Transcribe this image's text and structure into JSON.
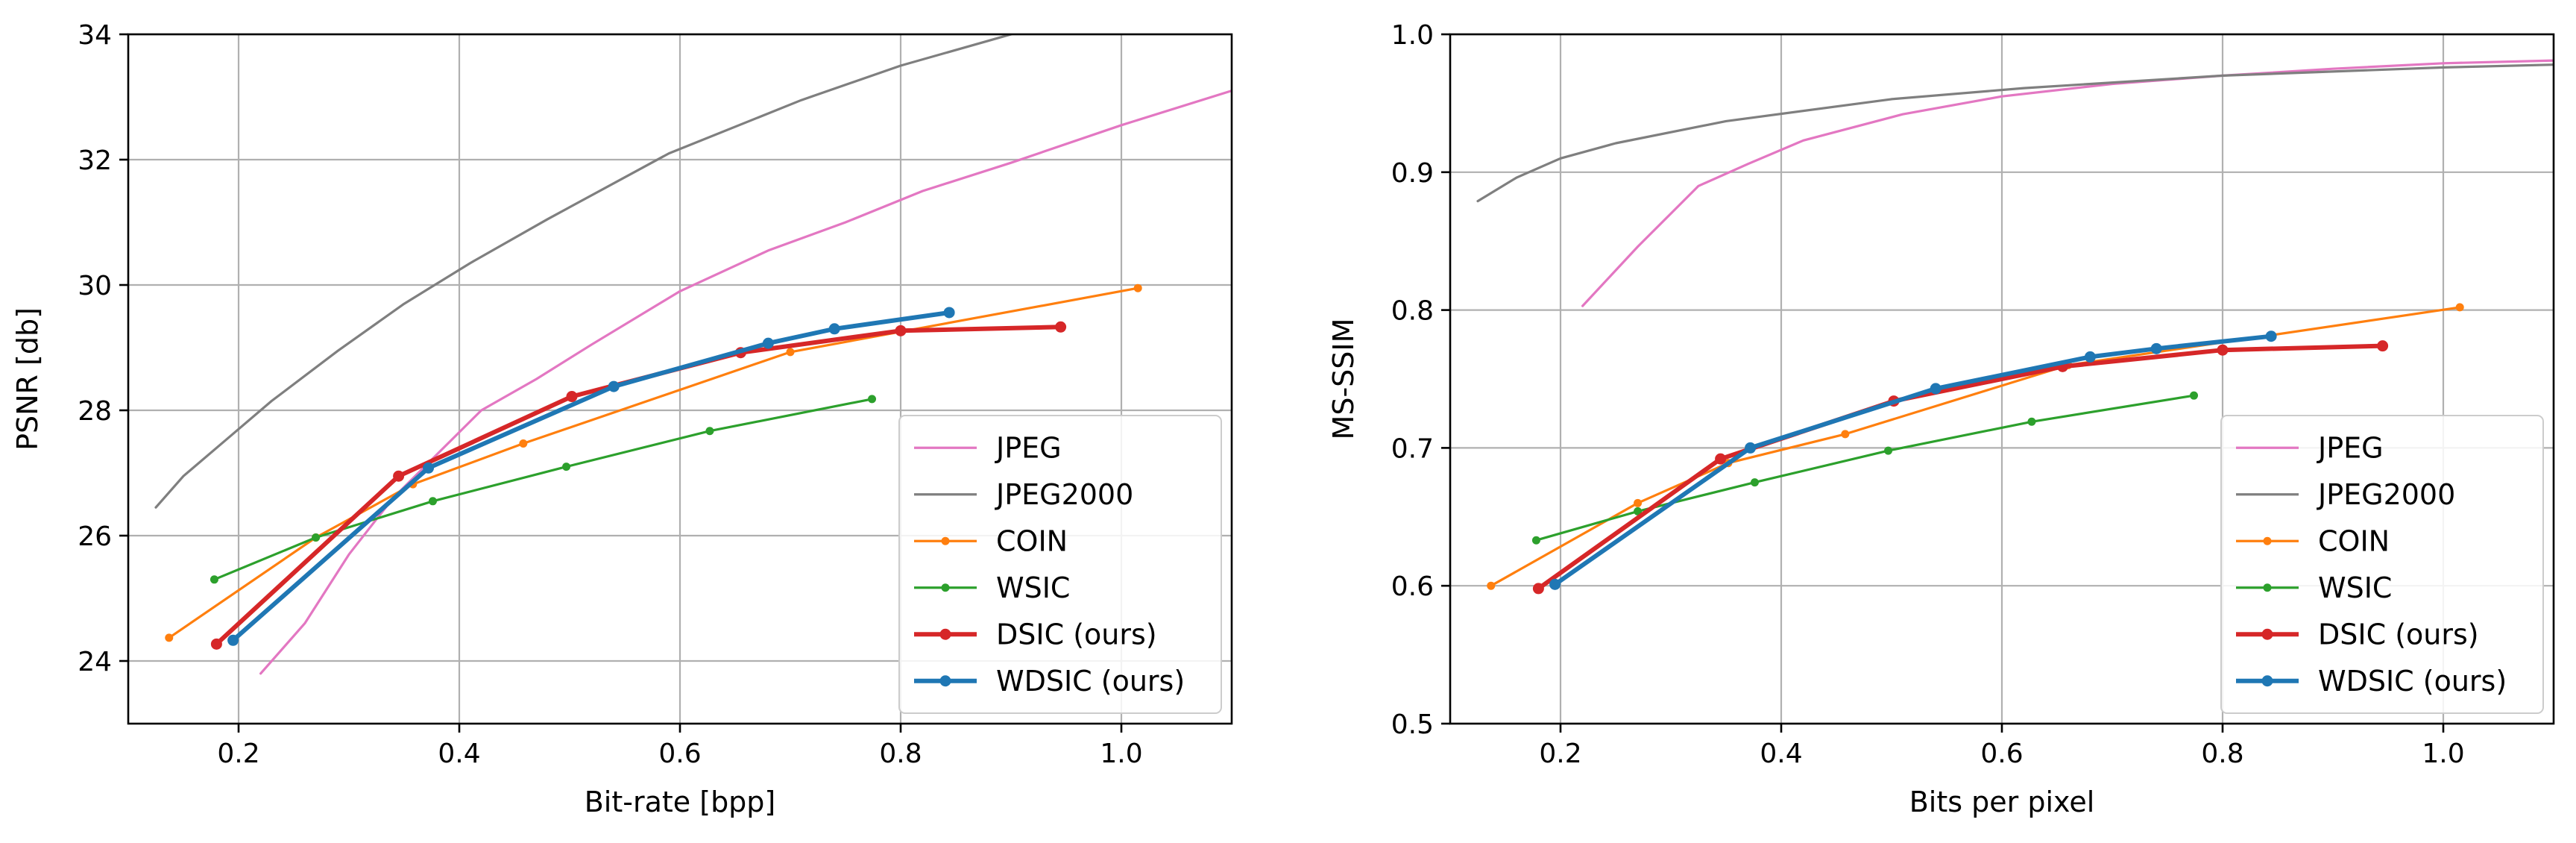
{
  "chart_data": [
    {
      "type": "line",
      "xlabel": "Bit-rate [bpp]",
      "ylabel": "PSNR [db]",
      "xlim": [
        0.1,
        1.1
      ],
      "ylim": [
        23,
        34
      ],
      "xticks": [
        "0.2",
        "0.4",
        "0.6",
        "0.8",
        "1.0"
      ],
      "xtick_values": [
        0.2,
        0.4,
        0.6,
        0.8,
        1.0
      ],
      "yticks": [
        "24",
        "26",
        "28",
        "30",
        "32",
        "34"
      ],
      "ytick_values": [
        24,
        26,
        28,
        30,
        32,
        34
      ],
      "grid": true,
      "legend_position": "lower-right",
      "series": [
        {
          "name": "JPEG",
          "color": "#e377c2",
          "marker": false,
          "bold": false,
          "x": [
            0.22,
            0.26,
            0.3,
            0.34,
            0.38,
            0.42,
            0.47,
            0.52,
            0.6,
            0.68,
            0.75,
            0.82,
            0.9,
            1.0,
            1.1
          ],
          "y": [
            23.8,
            24.6,
            25.7,
            26.6,
            27.3,
            28.0,
            28.5,
            29.05,
            29.9,
            30.55,
            31.0,
            31.5,
            31.95,
            32.55,
            33.1
          ]
        },
        {
          "name": "JPEG2000",
          "color": "#7f7f7f",
          "marker": false,
          "bold": false,
          "x": [
            0.125,
            0.15,
            0.19,
            0.23,
            0.29,
            0.35,
            0.41,
            0.48,
            0.59,
            0.71,
            0.8,
            0.88,
            0.92
          ],
          "y": [
            26.45,
            26.95,
            27.55,
            28.15,
            28.95,
            29.7,
            30.35,
            31.05,
            32.1,
            32.95,
            33.5,
            33.9,
            34.1
          ]
        },
        {
          "name": "COIN",
          "color": "#ff7f0e",
          "marker": true,
          "bold": false,
          "x": [
            0.137,
            0.27,
            0.358,
            0.458,
            0.7,
            1.015
          ],
          "y": [
            24.37,
            25.97,
            26.82,
            27.47,
            28.93,
            29.95
          ]
        },
        {
          "name": "WSIC",
          "color": "#2ca02c",
          "marker": true,
          "bold": false,
          "x": [
            0.178,
            0.27,
            0.376,
            0.497,
            0.627,
            0.774
          ],
          "y": [
            25.3,
            25.97,
            26.55,
            27.1,
            27.67,
            28.18
          ]
        },
        {
          "name": "DSIC (ours)",
          "color": "#d62728",
          "marker": true,
          "bold": true,
          "x": [
            0.18,
            0.345,
            0.502,
            0.655,
            0.8,
            0.945
          ],
          "y": [
            24.27,
            26.95,
            28.22,
            28.92,
            29.27,
            29.33
          ]
        },
        {
          "name": "WDSIC (ours)",
          "color": "#1f77b4",
          "marker": true,
          "bold": true,
          "x": [
            0.195,
            0.372,
            0.54,
            0.68,
            0.74,
            0.844
          ],
          "y": [
            24.33,
            27.08,
            28.38,
            29.07,
            29.3,
            29.56
          ]
        }
      ]
    },
    {
      "type": "line",
      "xlabel": "Bits per pixel",
      "ylabel": "MS-SSIM",
      "xlim": [
        0.1,
        1.1
      ],
      "ylim": [
        0.5,
        1.0
      ],
      "xticks": [
        "0.2",
        "0.4",
        "0.6",
        "0.8",
        "1.0"
      ],
      "xtick_values": [
        0.2,
        0.4,
        0.6,
        0.8,
        1.0
      ],
      "yticks": [
        "0.5",
        "0.6",
        "0.7",
        "0.8",
        "0.9",
        "1.0"
      ],
      "ytick_values": [
        0.5,
        0.6,
        0.7,
        0.8,
        0.9,
        1.0
      ],
      "grid": true,
      "legend_position": "lower-right",
      "series": [
        {
          "name": "JPEG",
          "color": "#e377c2",
          "marker": false,
          "bold": false,
          "x": [
            0.22,
            0.27,
            0.325,
            0.37,
            0.42,
            0.51,
            0.6,
            0.7,
            0.8,
            0.9,
            1.0,
            1.1
          ],
          "y": [
            0.803,
            0.846,
            0.89,
            0.906,
            0.923,
            0.942,
            0.955,
            0.964,
            0.97,
            0.975,
            0.979,
            0.981
          ]
        },
        {
          "name": "JPEG2000",
          "color": "#7f7f7f",
          "marker": false,
          "bold": false,
          "x": [
            0.125,
            0.16,
            0.2,
            0.25,
            0.35,
            0.5,
            0.62,
            0.8,
            1.0,
            1.1
          ],
          "y": [
            0.879,
            0.896,
            0.91,
            0.921,
            0.937,
            0.953,
            0.961,
            0.97,
            0.976,
            0.978
          ]
        },
        {
          "name": "COIN",
          "color": "#ff7f0e",
          "marker": true,
          "bold": false,
          "x": [
            0.137,
            0.27,
            0.352,
            0.458,
            0.66,
            1.015
          ],
          "y": [
            0.6,
            0.66,
            0.689,
            0.71,
            0.76,
            0.802
          ]
        },
        {
          "name": "WSIC",
          "color": "#2ca02c",
          "marker": true,
          "bold": false,
          "x": [
            0.178,
            0.27,
            0.376,
            0.497,
            0.627,
            0.774
          ],
          "y": [
            0.633,
            0.654,
            0.675,
            0.698,
            0.719,
            0.738
          ]
        },
        {
          "name": "DSIC (ours)",
          "color": "#d62728",
          "marker": true,
          "bold": true,
          "x": [
            0.18,
            0.345,
            0.502,
            0.655,
            0.8,
            0.945
          ],
          "y": [
            0.598,
            0.692,
            0.734,
            0.759,
            0.771,
            0.774
          ]
        },
        {
          "name": "WDSIC (ours)",
          "color": "#1f77b4",
          "marker": true,
          "bold": true,
          "x": [
            0.195,
            0.372,
            0.54,
            0.68,
            0.74,
            0.844
          ],
          "y": [
            0.601,
            0.7,
            0.743,
            0.766,
            0.772,
            0.781
          ]
        }
      ]
    }
  ]
}
